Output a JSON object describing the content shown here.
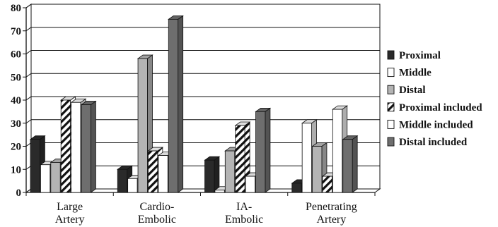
{
  "chart_data": {
    "type": "bar",
    "title": "",
    "xlabel": "",
    "ylabel": "",
    "ylim": [
      0,
      80
    ],
    "yticks": [
      0,
      10,
      20,
      30,
      40,
      50,
      60,
      70,
      80
    ],
    "grid": true,
    "legend_position": "right",
    "categories": [
      [
        "Large",
        "Artery"
      ],
      [
        "Cardio-",
        "Embolic"
      ],
      [
        "IA-",
        "Embolic"
      ],
      [
        "Penetrating",
        "Artery"
      ]
    ],
    "series": [
      {
        "name": "Proximal",
        "values": [
          23,
          10,
          14,
          4
        ],
        "pattern": "solid",
        "color": "#2a2a2a"
      },
      {
        "name": "Middle",
        "values": [
          12,
          6,
          1,
          30
        ],
        "pattern": "solid",
        "color": "#ffffff"
      },
      {
        "name": "Distal",
        "values": [
          13,
          58,
          18,
          20
        ],
        "pattern": "solid",
        "color": "#b4b4b4"
      },
      {
        "name": "Proximal included",
        "values": [
          40,
          18,
          29,
          7
        ],
        "pattern": "hatch",
        "color": "#ffffff"
      },
      {
        "name": "Middle included",
        "values": [
          39,
          16,
          7,
          36
        ],
        "pattern": "solid",
        "color": "#ffffff"
      },
      {
        "name": "Distal included",
        "values": [
          38,
          75,
          35,
          23
        ],
        "pattern": "solid",
        "color": "#6e6e6e"
      }
    ]
  }
}
